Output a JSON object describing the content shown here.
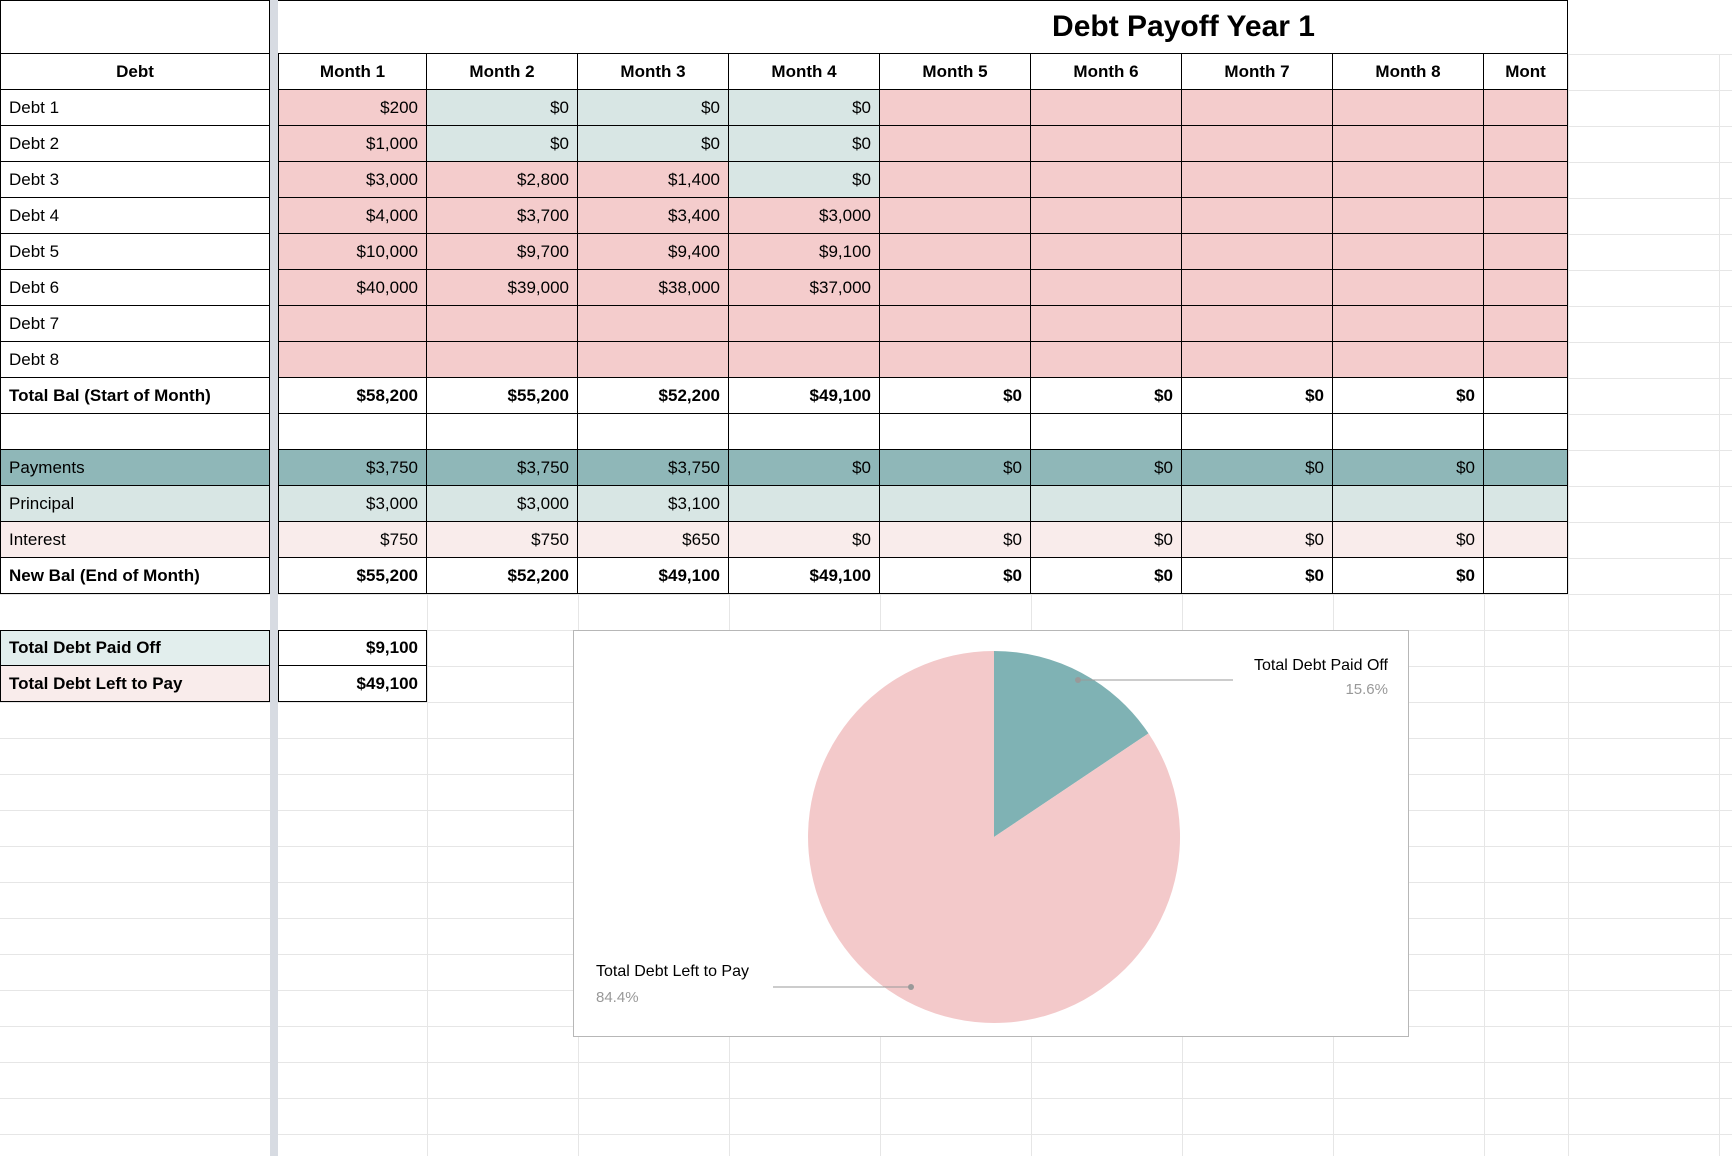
{
  "sheet": {
    "title": "Debt Payoff Year 1",
    "header": {
      "debt_col": "Debt",
      "months": [
        "Month 1",
        "Month 2",
        "Month 3",
        "Month 4",
        "Month 5",
        "Month 6",
        "Month 7",
        "Month 8",
        "Mont"
      ]
    },
    "rows": [
      {
        "label": "Debt 1",
        "style": "debt",
        "values": [
          "$200",
          "$0",
          "$0",
          "$0",
          "",
          "",
          "",
          "",
          ""
        ],
        "cell_fills": [
          "pink",
          "teal",
          "teal",
          "teal",
          "pink",
          "pink",
          "pink",
          "pink",
          "pink"
        ]
      },
      {
        "label": "Debt 2",
        "style": "debt",
        "values": [
          "$1,000",
          "$0",
          "$0",
          "$0",
          "",
          "",
          "",
          "",
          ""
        ],
        "cell_fills": [
          "pink",
          "teal",
          "teal",
          "teal",
          "pink",
          "pink",
          "pink",
          "pink",
          "pink"
        ]
      },
      {
        "label": "Debt 3",
        "style": "debt",
        "values": [
          "$3,000",
          "$2,800",
          "$1,400",
          "$0",
          "",
          "",
          "",
          "",
          ""
        ],
        "cell_fills": [
          "pink",
          "pink",
          "pink",
          "teal",
          "pink",
          "pink",
          "pink",
          "pink",
          "pink"
        ]
      },
      {
        "label": "Debt 4",
        "style": "debt",
        "values": [
          "$4,000",
          "$3,700",
          "$3,400",
          "$3,000",
          "",
          "",
          "",
          "",
          ""
        ],
        "cell_fills": [
          "pink",
          "pink",
          "pink",
          "pink",
          "pink",
          "pink",
          "pink",
          "pink",
          "pink"
        ]
      },
      {
        "label": "Debt 5",
        "style": "debt",
        "values": [
          "$10,000",
          "$9,700",
          "$9,400",
          "$9,100",
          "",
          "",
          "",
          "",
          ""
        ],
        "cell_fills": [
          "pink",
          "pink",
          "pink",
          "pink",
          "pink",
          "pink",
          "pink",
          "pink",
          "pink"
        ]
      },
      {
        "label": "Debt 6",
        "style": "debt",
        "values": [
          "$40,000",
          "$39,000",
          "$38,000",
          "$37,000",
          "",
          "",
          "",
          "",
          ""
        ],
        "cell_fills": [
          "pink",
          "pink",
          "pink",
          "pink",
          "pink",
          "pink",
          "pink",
          "pink",
          "pink"
        ]
      },
      {
        "label": "Debt 7",
        "style": "debt",
        "values": [
          "",
          "",
          "",
          "",
          "",
          "",
          "",
          "",
          ""
        ],
        "cell_fills": [
          "pink",
          "pink",
          "pink",
          "pink",
          "pink",
          "pink",
          "pink",
          "pink",
          "pink"
        ]
      },
      {
        "label": "Debt 8",
        "style": "debt",
        "values": [
          "",
          "",
          "",
          "",
          "",
          "",
          "",
          "",
          ""
        ],
        "cell_fills": [
          "pink",
          "pink",
          "pink",
          "pink",
          "pink",
          "pink",
          "pink",
          "pink",
          "pink"
        ]
      },
      {
        "label": "Total Bal (Start of Month)",
        "style": "total",
        "values": [
          "$58,200",
          "$55,200",
          "$52,200",
          "$49,100",
          "$0",
          "$0",
          "$0",
          "$0",
          ""
        ]
      },
      {
        "label": "",
        "style": "blank",
        "values": [
          "",
          "",
          "",
          "",
          "",
          "",
          "",
          "",
          ""
        ]
      },
      {
        "label": "Payments",
        "style": "payments",
        "values": [
          "$3,750",
          "$3,750",
          "$3,750",
          "$0",
          "$0",
          "$0",
          "$0",
          "$0",
          ""
        ]
      },
      {
        "label": "Principal",
        "style": "principal",
        "values": [
          "$3,000",
          "$3,000",
          "$3,100",
          "",
          "",
          "",
          "",
          "",
          ""
        ]
      },
      {
        "label": "Interest",
        "style": "interest",
        "values": [
          "$750",
          "$750",
          "$650",
          "$0",
          "$0",
          "$0",
          "$0",
          "$0",
          ""
        ]
      },
      {
        "label": "New Bal (End of Month)",
        "style": "total",
        "values": [
          "$55,200",
          "$52,200",
          "$49,100",
          "$49,100",
          "$0",
          "$0",
          "$0",
          "$0",
          ""
        ]
      }
    ],
    "summary": [
      {
        "label": "Total Debt Paid Off",
        "value": "$9,100",
        "style": "paid"
      },
      {
        "label": "Total Debt Left to Pay",
        "value": "$49,100",
        "style": "left"
      }
    ]
  },
  "chart_data": {
    "type": "pie",
    "labels": [
      "Total Debt Paid Off",
      "Total Debt Left to Pay"
    ],
    "values": [
      15.6,
      84.4
    ],
    "display": [
      "15.6%",
      "84.4%"
    ],
    "colors": [
      "#7fb2b4",
      "#f3c9ca"
    ],
    "start_angle_deg": 0,
    "direction": "clockwise",
    "legend_position": "callout-labels"
  },
  "colors": {
    "cell_pink": "#f4cccc",
    "cell_teal": "#d8e6e4",
    "row_payments": "#8fb7b8",
    "row_interest": "#f9eceb",
    "summary_paid": "#e2eeed",
    "summary_left": "#f9eceb",
    "divider": "#d7dbe2",
    "pie_teal": "#7fb2b4",
    "pie_pink": "#f3c9ca",
    "grid_faint": "#e6e6e6",
    "callout_gray": "#999999",
    "chart_border": "#b7b7b7"
  }
}
